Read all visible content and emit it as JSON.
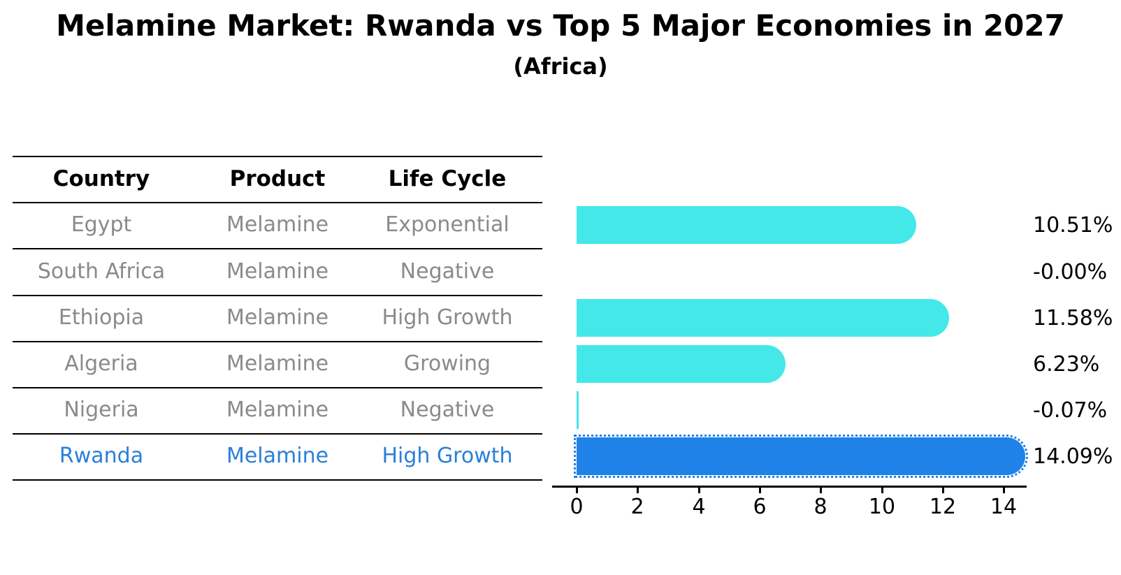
{
  "title": "Melamine Market: Rwanda vs Top 5 Major Economies in 2027",
  "subtitle": "(Africa)",
  "table": {
    "headers": [
      "Country",
      "Product",
      "Life Cycle"
    ],
    "rows": [
      {
        "country": "Egypt",
        "product": "Melamine",
        "life_cycle": "Exponential",
        "highlight": false
      },
      {
        "country": "South Africa",
        "product": "Melamine",
        "life_cycle": "Negative",
        "highlight": false
      },
      {
        "country": "Ethiopia",
        "product": "Melamine",
        "life_cycle": "High Growth",
        "highlight": false
      },
      {
        "country": "Algeria",
        "product": "Melamine",
        "life_cycle": "Growing",
        "highlight": false
      },
      {
        "country": "Nigeria",
        "product": "Melamine",
        "life_cycle": "Negative",
        "highlight": false
      },
      {
        "country": "Rwanda",
        "product": "Melamine",
        "life_cycle": "High Growth",
        "highlight": true
      }
    ]
  },
  "chart_data": {
    "type": "bar",
    "orientation": "horizontal",
    "title": "Melamine Market: Rwanda vs Top 5 Major Economies in 2027",
    "subtitle": "(Africa)",
    "categories": [
      "Egypt",
      "South Africa",
      "Ethiopia",
      "Algeria",
      "Nigeria",
      "Rwanda"
    ],
    "values": [
      10.51,
      -0.0,
      11.58,
      6.23,
      -0.07,
      14.09
    ],
    "value_labels": [
      "10.51%",
      "-0.00%",
      "11.58%",
      "6.23%",
      "-0.07%",
      "14.09%"
    ],
    "x_ticks": [
      0,
      2,
      4,
      6,
      8,
      10,
      12,
      14
    ],
    "xlim": [
      -0.8,
      14.75
    ],
    "grid": false,
    "legend": "none",
    "highlight_index": 5
  },
  "colors": {
    "bar": "#45e8e8",
    "highlight_bar": "#1e82e8",
    "highlight_text": "#2980d9",
    "table_text": "#8a8a8a",
    "axis_text": "#000000"
  }
}
